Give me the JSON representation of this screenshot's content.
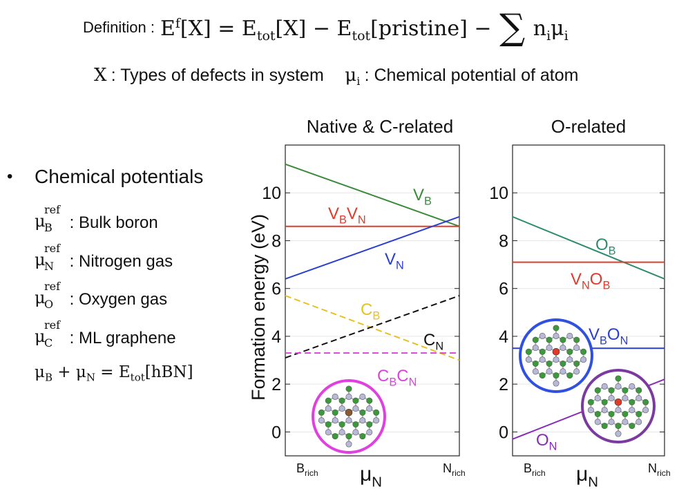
{
  "definition": {
    "label": "Definition :",
    "E": "E",
    "f": "f",
    "X": "[X]",
    "eq": "=",
    "tot": "tot",
    "minus": "−",
    "pristine": "[pristine]",
    "sigma": "∑",
    "n": "n",
    "i": "i",
    "mu": "μ"
  },
  "x_line": {
    "x_symbol": "X",
    "x_text": ": Types of defects in system",
    "mu_symbol": "μ",
    "mu_sub": "i",
    "mu_text": ": Chemical potential of atom"
  },
  "chemical_potentials": {
    "bullet": "•",
    "title": "Chemical potentials",
    "items": [
      {
        "mu": "μ",
        "sup": "ref",
        "sub": "B",
        "text": ": Bulk boron"
      },
      {
        "mu": "μ",
        "sup": "ref",
        "sub": "N",
        "text": ": Nitrogen gas"
      },
      {
        "mu": "μ",
        "sup": "ref",
        "sub": "O",
        "text": ": Oxygen gas"
      },
      {
        "mu": "μ",
        "sup": "ref",
        "sub": "C",
        "text": ": ML graphene"
      }
    ],
    "relation": {
      "mu": "μ",
      "b": "B",
      "plus": "+",
      "n": "N",
      "eq": "=",
      "e": "E",
      "tot": "tot",
      "arg": "[hBN]"
    }
  },
  "colors": {
    "green": "#3b8a3b",
    "red": "#e03a2a",
    "blue": "#2a3fcf",
    "yellow": "#e8c020",
    "black": "#111111",
    "magenta": "#e040e0",
    "teal": "#2e8b70",
    "purple": "#8a2ab8",
    "ring_magenta": "#e040e0",
    "ring_blue": "#3050e0",
    "ring_purple": "#7a3aa0"
  },
  "chart_data": [
    {
      "type": "line",
      "title": "Native & C-related",
      "ylabel": "Formation energy (eV)",
      "xlabel": "μN",
      "x_ticks": [
        {
          "main": "B",
          "sub": "rich"
        },
        {
          "main": "N",
          "sub": "rich"
        }
      ],
      "ylim": [
        -1.0,
        12.0
      ],
      "yticks": [
        0,
        2,
        4,
        6,
        8,
        10
      ],
      "grid": true,
      "x": [
        0,
        1
      ],
      "series": [
        {
          "name": "VB",
          "label_main": "V",
          "label_sub": "B",
          "values": [
            11.2,
            8.6
          ],
          "color": "green",
          "dashed": false
        },
        {
          "name": "VBVN",
          "label_main": "V",
          "label_sub": "B",
          "label_main2": "V",
          "label_sub2": "N",
          "values": [
            8.6,
            8.6
          ],
          "color": "red",
          "dashed": false
        },
        {
          "name": "VN",
          "label_main": "V",
          "label_sub": "N",
          "values": [
            6.4,
            9.0
          ],
          "color": "blue",
          "dashed": false
        },
        {
          "name": "CB",
          "label_main": "C",
          "label_sub": "B",
          "values": [
            5.7,
            3.0
          ],
          "color": "yellow",
          "dashed": true
        },
        {
          "name": "CN",
          "label_main": "C",
          "label_sub": "N",
          "values": [
            3.1,
            5.7
          ],
          "color": "black",
          "dashed": true
        },
        {
          "name": "CBCN",
          "label_main": "C",
          "label_sub": "B",
          "label_main2": "C",
          "label_sub2": "N",
          "values": [
            3.3,
            3.3
          ],
          "color": "magenta",
          "dashed": true
        }
      ]
    },
    {
      "type": "line",
      "title": "O-related",
      "xlabel": "μN",
      "x_ticks": [
        {
          "main": "B",
          "sub": "rich"
        },
        {
          "main": "N",
          "sub": "rich"
        }
      ],
      "ylim": [
        -1.0,
        12.0
      ],
      "yticks": [
        0,
        2,
        4,
        6,
        8,
        10
      ],
      "grid": true,
      "x": [
        0,
        1
      ],
      "series": [
        {
          "name": "OB",
          "label_main": "O",
          "label_sub": "B",
          "values": [
            9.0,
            6.4
          ],
          "color": "teal",
          "dashed": false
        },
        {
          "name": "VNOB",
          "label_main": "V",
          "label_sub": "N",
          "label_main2": "O",
          "label_sub2": "B",
          "values": [
            7.1,
            7.1
          ],
          "color": "red",
          "dashed": false
        },
        {
          "name": "VBON",
          "label_main": "V",
          "label_sub": "B",
          "label_main2": "O",
          "label_sub2": "N",
          "values": [
            3.5,
            3.5
          ],
          "color": "blue",
          "dashed": false
        },
        {
          "name": "ON",
          "label_main": "O",
          "label_sub": "N",
          "values": [
            -0.3,
            2.2
          ],
          "color": "purple",
          "dashed": false
        }
      ]
    }
  ]
}
